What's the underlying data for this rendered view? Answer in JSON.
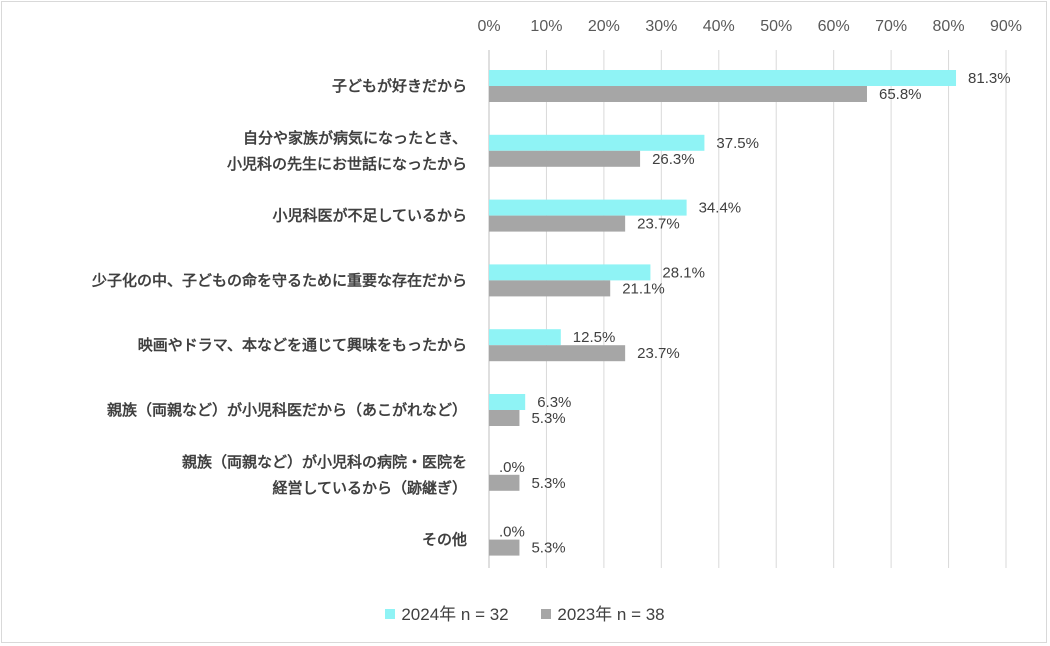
{
  "chart_data": {
    "type": "bar",
    "orientation": "horizontal",
    "categories": [
      [
        "子どもが好きだから"
      ],
      [
        "自分や家族が病気になったとき、",
        "小児科の先生にお世話になったから"
      ],
      [
        "小児科医が不足しているから"
      ],
      [
        "少子化の中、子どもの命を守るために重要な存在だから"
      ],
      [
        "映画やドラマ、本などを通じて興味をもったから"
      ],
      [
        "親族（両親など）が小児科医だから（あこがれなど）"
      ],
      [
        "親族（両親など）が小児科の病院・医院を",
        "経営しているから（跡継ぎ）"
      ],
      [
        "その他"
      ]
    ],
    "series": [
      {
        "name": "2024年 n = 32",
        "color": "#8ff3f5",
        "values": [
          81.3,
          37.5,
          34.4,
          28.1,
          12.5,
          6.3,
          0,
          0
        ],
        "labels": [
          "81.3%",
          "37.5%",
          "34.4%",
          "28.1%",
          "12.5%",
          "6.3%",
          ".0%",
          ".0%"
        ]
      },
      {
        "name": "2023年 n = 38",
        "color": "#a6a6a6",
        "values": [
          65.8,
          26.3,
          23.7,
          21.1,
          23.7,
          5.3,
          5.3,
          5.3
        ],
        "labels": [
          "65.8%",
          "26.3%",
          "23.7%",
          "21.1%",
          "23.7%",
          "5.3%",
          "5.3%",
          "5.3%"
        ]
      }
    ],
    "xlim": [
      0,
      90
    ],
    "xticks": [
      "0%",
      "10%",
      "20%",
      "30%",
      "40%",
      "50%",
      "60%",
      "70%",
      "80%",
      "90%"
    ],
    "gridlines": true,
    "legend_position": "bottom"
  }
}
